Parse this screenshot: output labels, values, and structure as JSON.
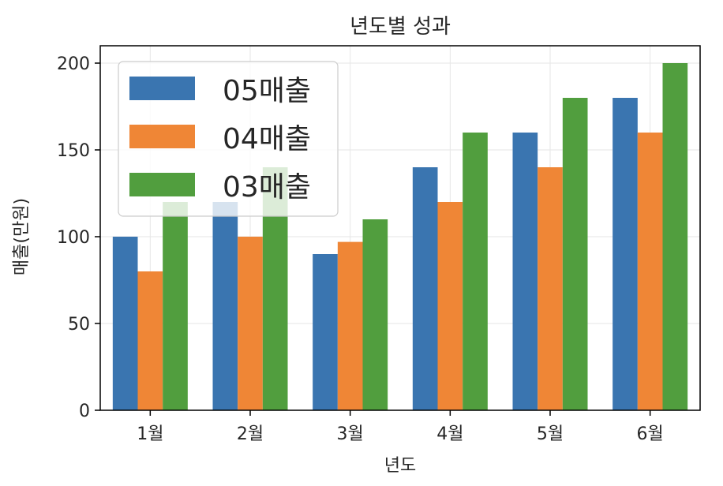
{
  "chart_data": {
    "type": "bar",
    "title": "년도별 성과",
    "xlabel": "년도",
    "ylabel": "매출(만원)",
    "categories": [
      "1월",
      "2월",
      "3월",
      "4월",
      "5월",
      "6월"
    ],
    "series": [
      {
        "name": "05매출",
        "color": "#3a75b0",
        "values": [
          100,
          120,
          90,
          140,
          160,
          180
        ]
      },
      {
        "name": "04매출",
        "color": "#ef8636",
        "values": [
          80,
          100,
          97,
          120,
          140,
          160
        ]
      },
      {
        "name": "03매출",
        "color": "#519e3e",
        "values": [
          120,
          140,
          110,
          160,
          180,
          200
        ]
      }
    ],
    "ylim": [
      0,
      210
    ],
    "yticks": [
      0,
      50,
      100,
      150,
      200
    ],
    "grid": true,
    "legend": "top-left"
  }
}
